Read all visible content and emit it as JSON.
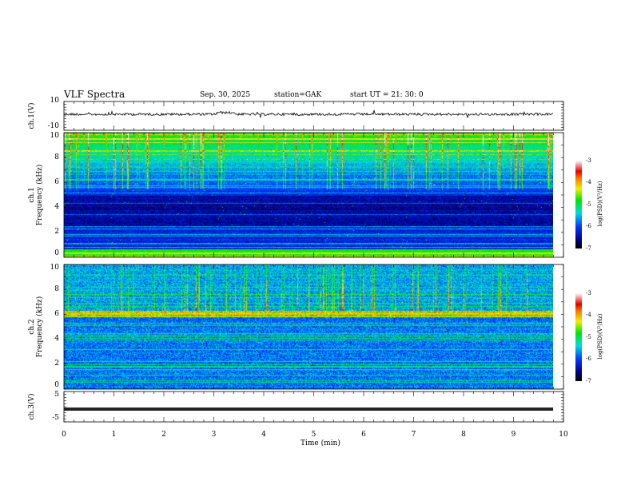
{
  "header": {
    "title": "VLF  Spectra",
    "date": "Sep. 30, 2025",
    "station": "station=GAK",
    "start": "start  UT  =    21: 30: 0"
  },
  "chart_data": [
    {
      "type": "line",
      "name": "ch1-voltage",
      "ylabel": "ch.1(V)",
      "ylim": [
        -10,
        10
      ],
      "ytick_labels": [
        "10",
        "-10"
      ],
      "xlim": [
        0,
        10
      ],
      "approx_level": 0
    },
    {
      "type": "heatmap",
      "name": "ch1-spectrogram",
      "ylabel": "ch.1\nFrequency  (kHz)",
      "ylabel_lines": [
        "ch.1",
        "Frequency  (kHz)"
      ],
      "ylim": [
        0,
        10
      ],
      "ytick_labels": [
        "10",
        "8",
        "6",
        "4",
        "2",
        "0"
      ],
      "xlim": [
        0,
        9.8
      ],
      "colorbar": {
        "label": "log(PSD)(V²/Hz)",
        "range": [
          -7,
          -3
        ],
        "tick_labels": [
          "-3",
          "-4",
          "-5",
          "-6",
          "-7"
        ]
      }
    },
    {
      "type": "heatmap",
      "name": "ch2-spectrogram",
      "ylabel_lines": [
        "ch.2",
        "Frequency  (kHz)"
      ],
      "ylim": [
        0,
        10
      ],
      "ytick_labels": [
        "10",
        "8",
        "6",
        "4",
        "2",
        "0"
      ],
      "xlim": [
        0,
        9.8
      ],
      "colorbar": {
        "label": "log(PSD)(V²/Hz)",
        "range": [
          -7,
          -3
        ],
        "tick_labels": [
          "-3",
          "-4",
          "-5",
          "-6",
          "-7"
        ]
      }
    },
    {
      "type": "line",
      "name": "ch3-voltage",
      "ylabel": "ch.3(V)",
      "ylim": [
        -5,
        5
      ],
      "ytick_labels": [
        "5",
        "-5"
      ],
      "xlim": [
        0,
        10
      ],
      "approx_level": -2
    }
  ],
  "xaxis": {
    "label": "Time  (min)",
    "tick_labels": [
      "0",
      "1",
      "2",
      "3",
      "4",
      "5",
      "6",
      "7",
      "8",
      "9",
      "10"
    ]
  }
}
